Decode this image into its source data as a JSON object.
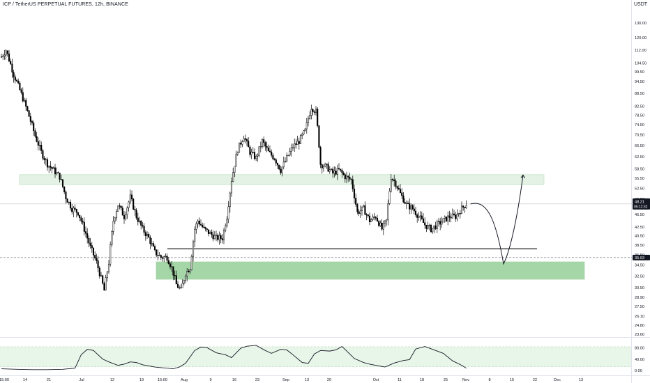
{
  "header": {
    "symbol_line": "ICP / TetherUS PERPETUAL FUTURES, 12h, BINANCE",
    "currency": "USDT"
  },
  "colors": {
    "up": "#ffffff",
    "down": "#000000",
    "zone_fill": "#a5d6a7",
    "zone_light": "#e3f2e4",
    "zone_stroke": "#b7dcb9",
    "rsi_band": "#e8f5e9",
    "price_label_bg": "#131722",
    "level_line": "#000000"
  },
  "chart_data": [
    {
      "type": "candlestick",
      "title": "ICP / TetherUS PERPETUAL FUTURES, 12h, BINANCE",
      "scale": "log",
      "ylim": [
        21,
        150
      ],
      "xaxis_labels": [
        "15:00",
        "14",
        "21",
        "Jul",
        "12",
        "19",
        "15:00",
        "Aug",
        "9",
        "16",
        "23",
        "Sep",
        "13",
        "20",
        "Oct",
        "11",
        "18",
        "25",
        "Nov",
        "8",
        "15",
        "22",
        "Dec",
        "13"
      ],
      "yaxis_ticks": [
        23.6,
        24.8,
        26.1,
        27.5,
        28.9,
        30.5,
        32.5,
        34.5,
        36.5,
        38.5,
        40.5,
        42.5,
        45.5,
        47.5,
        49.5,
        52.5,
        55.5,
        58.5,
        62.5,
        66.5,
        70.5,
        74.5,
        78.5,
        82.5,
        88.5,
        94.5,
        99.5,
        104.5,
        112.0,
        120.0,
        130.0
      ],
      "current_price": "48.21",
      "countdown": "05:12:32",
      "level_label": "35.93",
      "path_points": [
        [
          0,
          108
        ],
        [
          3,
          112
        ],
        [
          8,
          98
        ],
        [
          12,
          90
        ],
        [
          18,
          78
        ],
        [
          22,
          70
        ],
        [
          26,
          64
        ],
        [
          30,
          60
        ],
        [
          34,
          58
        ],
        [
          38,
          56
        ],
        [
          42,
          50
        ],
        [
          46,
          47
        ],
        [
          50,
          46
        ],
        [
          54,
          42
        ],
        [
          58,
          38
        ],
        [
          62,
          35
        ],
        [
          65,
          32
        ],
        [
          67,
          30
        ],
        [
          70,
          35
        ],
        [
          73,
          44
        ],
        [
          76,
          48
        ],
        [
          80,
          45
        ],
        [
          84,
          50
        ],
        [
          88,
          45
        ],
        [
          92,
          42
        ],
        [
          96,
          40
        ],
        [
          100,
          37
        ],
        [
          104,
          36
        ],
        [
          108,
          36
        ],
        [
          111,
          34
        ],
        [
          114,
          31
        ],
        [
          117,
          30
        ],
        [
          120,
          33
        ],
        [
          123,
          34
        ],
        [
          126,
          42
        ],
        [
          128,
          44
        ],
        [
          132,
          42
        ],
        [
          136,
          41
        ],
        [
          140,
          40
        ],
        [
          144,
          40
        ],
        [
          147,
          45
        ],
        [
          150,
          55
        ],
        [
          154,
          65
        ],
        [
          158,
          70
        ],
        [
          162,
          64
        ],
        [
          166,
          62
        ],
        [
          170,
          68
        ],
        [
          174,
          64
        ],
        [
          178,
          62
        ],
        [
          182,
          58
        ],
        [
          186,
          62
        ],
        [
          190,
          66
        ],
        [
          194,
          68
        ],
        [
          198,
          72
        ],
        [
          202,
          82
        ],
        [
          205,
          80
        ],
        [
          208,
          60
        ],
        [
          212,
          59
        ],
        [
          216,
          57
        ],
        [
          220,
          58
        ],
        [
          224,
          56
        ],
        [
          228,
          55
        ],
        [
          232,
          46
        ],
        [
          236,
          47
        ],
        [
          240,
          44
        ],
        [
          244,
          45
        ],
        [
          248,
          42
        ],
        [
          251,
          44
        ],
        [
          254,
          56
        ],
        [
          257,
          54
        ],
        [
          260,
          51
        ],
        [
          264,
          48
        ],
        [
          268,
          47
        ],
        [
          272,
          45
        ],
        [
          276,
          43
        ],
        [
          280,
          42
        ],
        [
          284,
          43
        ],
        [
          288,
          44
        ],
        [
          292,
          45
        ],
        [
          296,
          45
        ],
        [
          300,
          47
        ],
        [
          303,
          48.2
        ]
      ],
      "projected_path": "48.21 → 34.7 (Nov 6) → 56.5 (Nov 13)",
      "zones": [
        {
          "name": "upper resistance zone",
          "from": 53.6,
          "to": 56.6
        },
        {
          "name": "lower demand zone",
          "from": 31.9,
          "to": 35.1
        }
      ],
      "levels": [
        {
          "name": "support line",
          "value": 37.7
        }
      ]
    },
    {
      "type": "line",
      "title": "",
      "ylim": [
        0,
        100
      ],
      "yaxis_ticks": [
        80.0,
        40.0,
        0.0
      ],
      "band": [
        13,
        83
      ],
      "x": [
        0,
        10,
        20,
        30,
        40,
        48,
        52,
        56,
        60,
        66,
        70,
        76,
        80,
        84,
        88,
        92,
        96,
        100,
        104,
        108,
        112,
        116,
        120,
        126,
        130,
        134,
        140,
        146,
        150,
        156,
        160,
        166,
        172,
        176,
        182,
        186,
        190,
        196,
        200,
        204,
        208,
        214,
        218,
        222,
        230,
        236,
        240,
        246,
        250,
        256,
        262,
        266,
        270,
        276,
        282,
        288,
        294,
        300,
        303
      ],
      "values": [
        6,
        4,
        3,
        3,
        4,
        8,
        55,
        74,
        70,
        40,
        30,
        18,
        22,
        30,
        28,
        20,
        16,
        12,
        10,
        8,
        6,
        12,
        25,
        70,
        82,
        80,
        62,
        55,
        45,
        78,
        85,
        88,
        70,
        60,
        74,
        72,
        55,
        28,
        25,
        58,
        70,
        68,
        72,
        84,
        42,
        28,
        22,
        16,
        12,
        26,
        35,
        38,
        75,
        84,
        72,
        60,
        34,
        18,
        8
      ]
    }
  ]
}
